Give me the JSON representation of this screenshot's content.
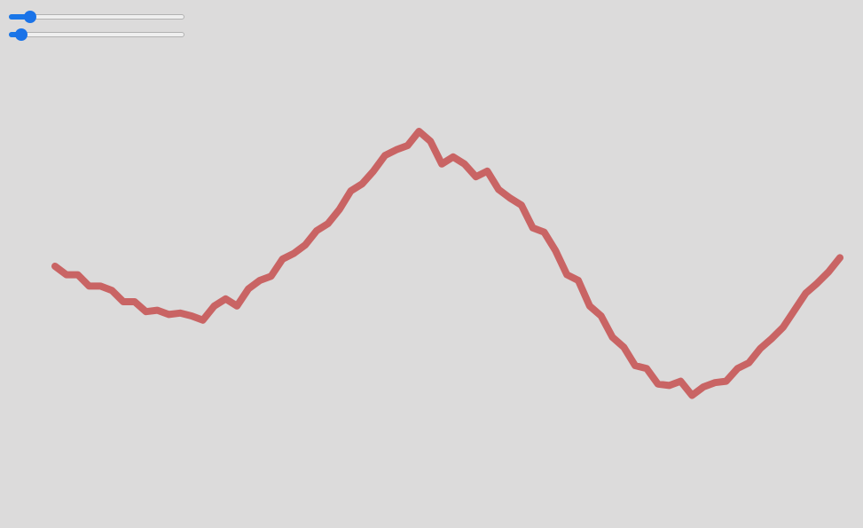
{
  "controls": {
    "sliders": [
      {
        "id": "slider-1",
        "value": 0.12
      },
      {
        "id": "slider-2",
        "value": 0.07
      }
    ]
  },
  "wave": {
    "stroke_color": "#c96464",
    "background_color": "#dcdbdb",
    "accent_color": "#1a73e8",
    "points": [
      [
        0,
        -0.0
      ],
      [
        1,
        -0.06
      ],
      [
        2,
        -0.06
      ],
      [
        3,
        -0.14
      ],
      [
        4,
        -0.14
      ],
      [
        5,
        -0.17
      ],
      [
        6,
        -0.25
      ],
      [
        7,
        -0.25
      ],
      [
        8,
        -0.32
      ],
      [
        9,
        -0.31
      ],
      [
        10,
        -0.34
      ],
      [
        11,
        -0.33
      ],
      [
        12,
        -0.35
      ],
      [
        13,
        -0.38
      ],
      [
        14,
        -0.28
      ],
      [
        15,
        -0.23
      ],
      [
        16,
        -0.28
      ],
      [
        17,
        -0.16
      ],
      [
        18,
        -0.1
      ],
      [
        19,
        -0.07
      ],
      [
        20,
        0.05
      ],
      [
        21,
        0.09
      ],
      [
        22,
        0.15
      ],
      [
        23,
        0.25
      ],
      [
        24,
        0.3
      ],
      [
        25,
        0.4
      ],
      [
        26,
        0.53
      ],
      [
        27,
        0.58
      ],
      [
        28,
        0.67
      ],
      [
        29,
        0.78
      ],
      [
        30,
        0.82
      ],
      [
        31,
        0.85
      ],
      [
        32,
        0.95
      ],
      [
        33,
        0.88
      ],
      [
        34,
        0.72
      ],
      [
        35,
        0.77
      ],
      [
        36,
        0.72
      ],
      [
        37,
        0.63
      ],
      [
        38,
        0.67
      ],
      [
        39,
        0.54
      ],
      [
        40,
        0.48
      ],
      [
        41,
        0.43
      ],
      [
        42,
        0.27
      ],
      [
        43,
        0.24
      ],
      [
        44,
        0.11
      ],
      [
        45,
        -0.06
      ],
      [
        46,
        -0.1
      ],
      [
        47,
        -0.28
      ],
      [
        48,
        -0.35
      ],
      [
        49,
        -0.5
      ],
      [
        50,
        -0.57
      ],
      [
        51,
        -0.7
      ],
      [
        52,
        -0.72
      ],
      [
        53,
        -0.83
      ],
      [
        54,
        -0.84
      ],
      [
        55,
        -0.81
      ],
      [
        56,
        -0.91
      ],
      [
        57,
        -0.85
      ],
      [
        58,
        -0.82
      ],
      [
        59,
        -0.81
      ],
      [
        60,
        -0.72
      ],
      [
        61,
        -0.68
      ],
      [
        62,
        -0.58
      ],
      [
        63,
        -0.51
      ],
      [
        64,
        -0.43
      ],
      [
        65,
        -0.31
      ],
      [
        66,
        -0.19
      ],
      [
        67,
        -0.12
      ],
      [
        68,
        -0.04
      ],
      [
        69,
        0.06
      ]
    ]
  }
}
